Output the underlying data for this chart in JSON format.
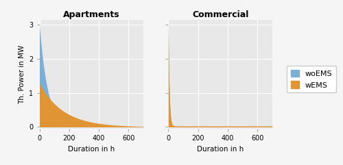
{
  "title_left": "Apartments",
  "title_right": "Commercial",
  "xlabel": "Duration in h",
  "ylabel": "Th. Power in MW",
  "xlim": [
    0,
    700
  ],
  "ylim": [
    -0.05,
    3.15
  ],
  "yticks": [
    0,
    1,
    2,
    3
  ],
  "xticks": [
    0,
    200,
    400,
    600
  ],
  "color_woEMS": "#7bafd4",
  "color_wEMS": "#e09535",
  "bg_color": "#e8e8e8",
  "fig_color": "#f5f5f5",
  "legend_labels": [
    "woEMS",
    "wEMS"
  ],
  "n_points": 8760,
  "apt_woems_tau": 55.0,
  "apt_woems_start": 3.0,
  "apt_wems_tau": 160.0,
  "apt_wems_start": 1.28,
  "com_woems_tau": 7.0,
  "com_woems_start": 3.0,
  "com_wems_tau": 6.5,
  "com_wems_start": 3.0,
  "com_baseline": 0.03
}
